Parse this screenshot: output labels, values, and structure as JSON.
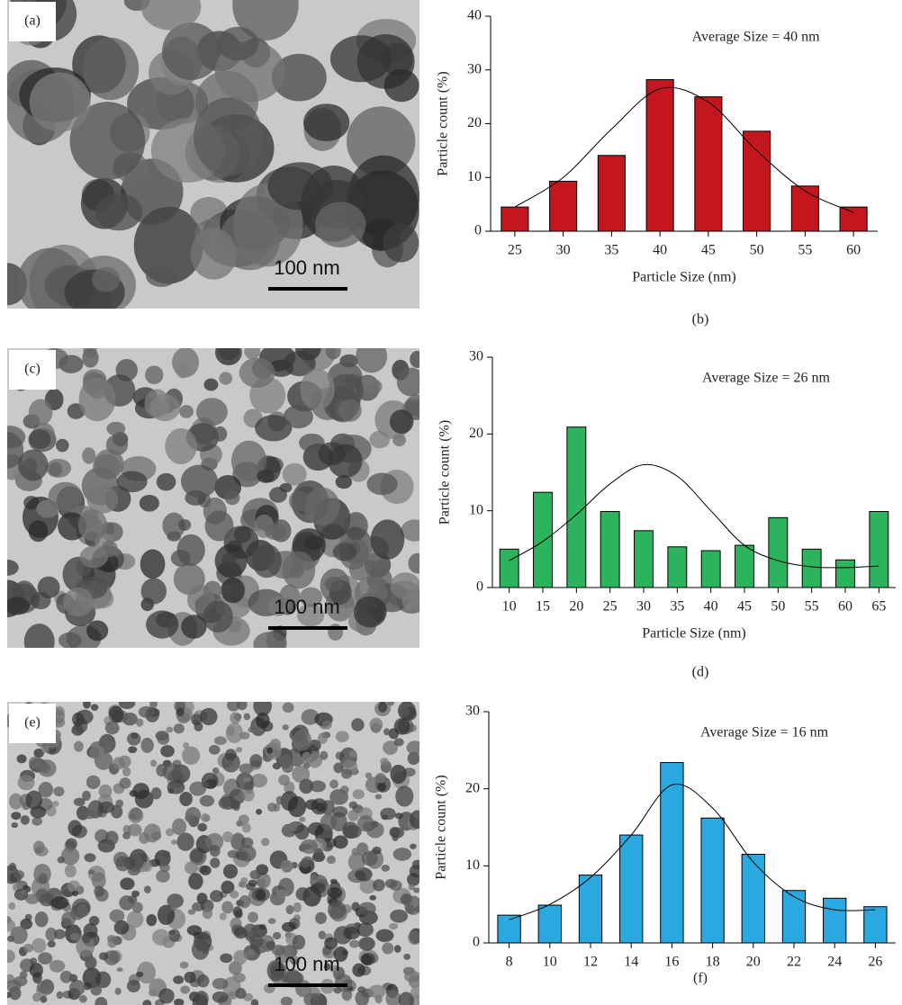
{
  "images": [
    {
      "label": "(a)",
      "scale_bar": "100 nm"
    },
    {
      "label": "(c)",
      "scale_bar": "100 nm"
    },
    {
      "label": "(e)",
      "scale_bar": "100 nm"
    }
  ],
  "chart_data": [
    {
      "type": "bar",
      "panel": "(b)",
      "annotation": "Average Size = 40 nm",
      "xlabel": "Particle Size (nm)",
      "ylabel": "Particle count (%)",
      "categories": [
        "25",
        "30",
        "35",
        "40",
        "45",
        "50",
        "55",
        "60"
      ],
      "values": [
        4.5,
        9.3,
        14.1,
        28.2,
        25,
        18.6,
        8.4,
        4.5
      ],
      "fit_values": [
        4.5,
        10,
        19,
        26.5,
        24,
        15,
        7.5,
        3.5
      ],
      "color": "#c3161f",
      "ylim": [
        0,
        40
      ],
      "yticks": [
        0,
        10,
        20,
        30,
        40
      ]
    },
    {
      "type": "bar",
      "panel": "(d)",
      "annotation": "Average Size = 26 nm",
      "xlabel": "Particle Size (nm)",
      "ylabel": "Particle count (%)",
      "categories": [
        "10",
        "15",
        "20",
        "25",
        "30",
        "35",
        "40",
        "45",
        "50",
        "55",
        "60",
        "65"
      ],
      "values": [
        5,
        12.4,
        20.9,
        9.9,
        7.4,
        5.3,
        4.8,
        5.5,
        9.1,
        5,
        3.6,
        9.9
      ],
      "fit_values": [
        3.5,
        6,
        9.5,
        13.5,
        16,
        14.5,
        10,
        5.5,
        3.5,
        2.7,
        2.6,
        2.8
      ],
      "color": "#2bb35e",
      "ylim": [
        0,
        30
      ],
      "yticks": [
        0,
        10,
        20,
        30
      ]
    },
    {
      "type": "bar",
      "panel": "(f)",
      "annotation": "Average Size = 16 nm",
      "ylabel": "Particle count (%)",
      "categories": [
        "8",
        "10",
        "12",
        "14",
        "16",
        "18",
        "20",
        "22",
        "24",
        "26"
      ],
      "values": [
        3.6,
        4.9,
        8.8,
        14,
        23.4,
        16.2,
        11.5,
        6.8,
        5.8,
        4.7
      ],
      "fit_values": [
        3,
        5,
        8.5,
        14,
        20.5,
        17.5,
        10.5,
        6,
        4.3,
        4.3
      ],
      "color": "#2aa9e0",
      "ylim": [
        0,
        30
      ],
      "yticks": [
        0,
        10,
        20,
        30
      ]
    }
  ]
}
